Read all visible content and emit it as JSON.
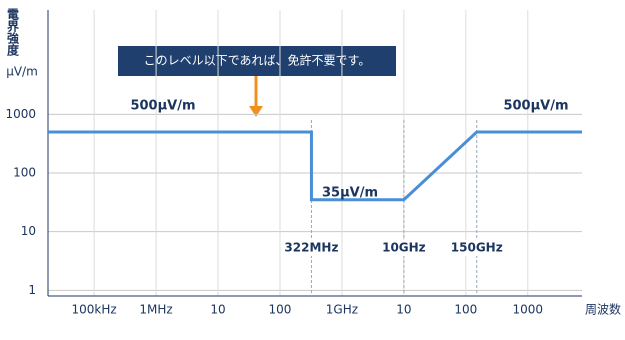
{
  "chart_data": {
    "type": "line",
    "title": "このレベル以下であれば、免許不要です。",
    "y_label": "電界強度",
    "y_unit": "μV/m",
    "x_label": "周波数",
    "log_x": true,
    "log_y": true,
    "grid": true,
    "xlim": [
      18000,
      7500000000000
    ],
    "ylim": [
      0.8,
      60000
    ],
    "xticks": [
      {
        "value": 100000,
        "label": "100kHz"
      },
      {
        "value": 1000000,
        "label": "1MHz"
      },
      {
        "value": 10000000,
        "label": "10"
      },
      {
        "value": 100000000,
        "label": "100"
      },
      {
        "value": 1000000000,
        "label": "1GHz"
      },
      {
        "value": 10000000000,
        "label": "10"
      },
      {
        "value": 100000000000,
        "label": "100"
      },
      {
        "value": 1000000000000,
        "label": "1000"
      }
    ],
    "yticks": [
      1,
      10,
      100,
      1000
    ],
    "series": [
      {
        "color": "#4a8fd6",
        "x": [
          18000,
          322000000,
          322000000,
          10000000000,
          150000000000,
          7500000000000
        ],
        "values": [
          500,
          500,
          35,
          35,
          500,
          500
        ]
      }
    ],
    "level_labels": [
      "500μV/m",
      "35μV/m",
      "500μV/m"
    ],
    "markers": [
      {
        "x": 322000000,
        "label": "322MHz"
      },
      {
        "x": 10000000000,
        "label": "10GHz"
      },
      {
        "x": 150000000000,
        "label": "150GHz"
      }
    ]
  }
}
